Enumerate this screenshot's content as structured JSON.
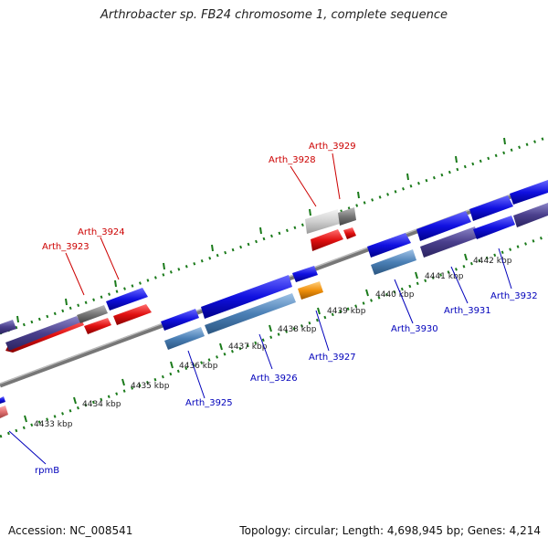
{
  "title": "Arthrobacter sp. FB24 chromosome 1, complete sequence",
  "footer": {
    "accession": "Accession: NC_008541",
    "info": "Topology: circular; Length: 4,698,945 bp; Genes: 4,214"
  },
  "kbp_labels": [
    "4433 kbp",
    "4434 kbp",
    "4435 kbp",
    "4436 kbp",
    "4437 kbp",
    "4438 kbp",
    "4439 kbp",
    "4440 kbp",
    "4441 kbp",
    "4442 kbp"
  ],
  "gene_labels": {
    "top": [
      "Arth_3923",
      "Arth_3924",
      "Arth_3928",
      "Arth_3929"
    ],
    "bottom": [
      "rpmB",
      "Arth_3925",
      "Arth_3926",
      "Arth_3927",
      "Arth_3930",
      "Arth_3931",
      "Arth_3932"
    ]
  },
  "colors": {
    "forward_gene": "#1010e0",
    "reverse_gene": "#e01010",
    "forward_cds": "#4a7fb5",
    "other": "#f0900a",
    "tick": "#1a7a1a"
  }
}
